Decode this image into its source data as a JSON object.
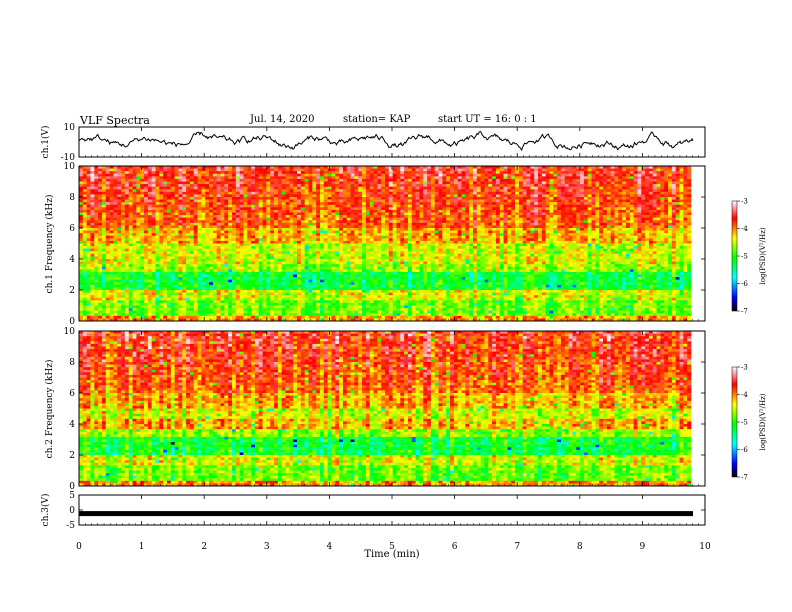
{
  "header": {
    "title": "VLF Spectra",
    "date": "Jul. 14, 2020",
    "station": "station= KAP",
    "start": "start UT = 16: 0 : 1"
  },
  "chart_data": [
    {
      "type": "line",
      "ylabel": "ch.1(V)",
      "ylim": [
        -10,
        10
      ],
      "yticks": [
        "10",
        "-10"
      ],
      "xlim": [
        0,
        10
      ],
      "series": [
        {
          "color": "#000000",
          "description_values_range": [
            -6,
            6
          ]
        }
      ]
    },
    {
      "type": "heatmap",
      "ylabel": "ch.1 Frequency (kHz)",
      "ylim": [
        0,
        10
      ],
      "yticks": [
        "0",
        "2",
        "4",
        "6",
        "8",
        "10"
      ],
      "xlim": [
        0,
        10
      ],
      "colorbar": {
        "label": "log(PSD)(V²/Hz)",
        "range": [
          -7,
          -3
        ],
        "ticks": [
          "-3",
          "-4",
          "-5",
          "-6",
          "-7"
        ]
      }
    },
    {
      "type": "heatmap",
      "ylabel": "ch.2 Frequency (kHz)",
      "ylim": [
        0,
        10
      ],
      "yticks": [
        "0",
        "2",
        "4",
        "6",
        "8",
        "10"
      ],
      "xlim": [
        0,
        10
      ],
      "colorbar": {
        "label": "log(PSD)(V²/Hz)",
        "range": [
          -7,
          -3
        ],
        "ticks": [
          "-3",
          "-4",
          "-5",
          "-6",
          "-7"
        ]
      }
    },
    {
      "type": "line",
      "ylabel": "ch.3(V)",
      "ylim": [
        -5,
        5
      ],
      "yticks": [
        "5",
        "0",
        "-5"
      ],
      "xlim": [
        0,
        10
      ],
      "series": [
        {
          "color": "#000000",
          "level": -1.2
        }
      ],
      "xlabel": "Time (min)",
      "xticks": [
        "0",
        "1",
        "2",
        "3",
        "4",
        "5",
        "6",
        "7",
        "8",
        "9",
        "10"
      ]
    }
  ],
  "colors": {
    "scale": [
      "#000000",
      "#0000ff",
      "#00ffff",
      "#00ff00",
      "#ffff00",
      "#ff0000",
      "#ffffff"
    ],
    "axis": "#000000"
  }
}
